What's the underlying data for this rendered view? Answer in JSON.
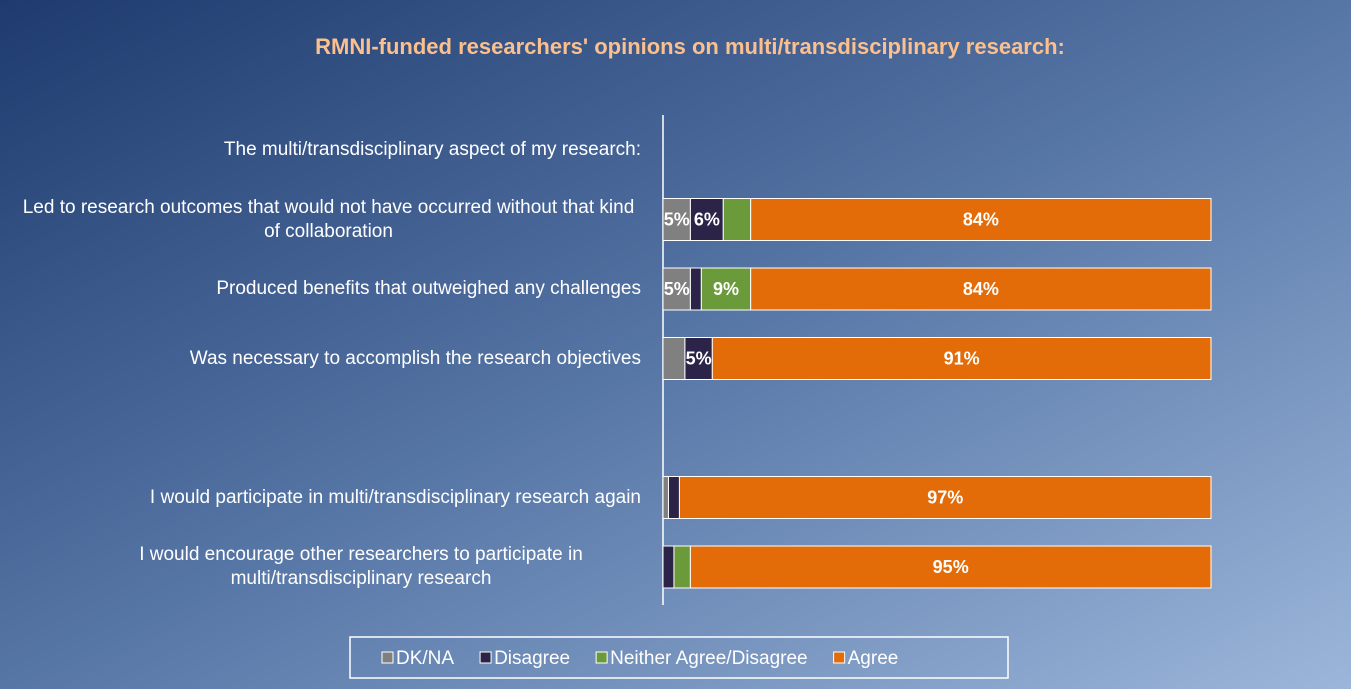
{
  "chart_data": {
    "type": "stacked-barh",
    "title": "RMNI-funded researchers' opinions  on multi/transdisciplinary research:",
    "categories": [
      "The multi/transdisciplinary aspect of my research:",
      "Led to research outcomes that would not have occurred without that kind of collaboration",
      "Produced benefits that outweighed any challenges",
      "Was necessary to accomplish the research objectives",
      null,
      "I would participate in multi/transdisciplinary research again",
      "I would encourage other researchers to participate in multi/transdisciplinary research"
    ],
    "xlim": [
      0,
      100
    ],
    "legend": "bottom",
    "series": [
      {
        "name": "DK/NA",
        "color": "#808080",
        "values": [
          null,
          5,
          5,
          4,
          null,
          1,
          0
        ],
        "value_labels": [
          null,
          "5%",
          "5%",
          null,
          null,
          null,
          null
        ]
      },
      {
        "name": "Disagree",
        "color": "#2b2448",
        "values": [
          null,
          6,
          2,
          5,
          null,
          2,
          2
        ],
        "value_labels": [
          null,
          "6%",
          null,
          "5%",
          null,
          null,
          null
        ]
      },
      {
        "name": "Neither Agree/Disagree",
        "color": "#6b9a3a",
        "values": [
          null,
          5,
          9,
          0,
          null,
          0,
          3
        ],
        "value_labels": [
          null,
          null,
          "9%",
          null,
          null,
          null,
          null
        ]
      },
      {
        "name": "Agree",
        "color": "#e36c09",
        "values": [
          null,
          84,
          84,
          91,
          null,
          97,
          95
        ],
        "value_labels": [
          null,
          "84%",
          "84%",
          "91%",
          null,
          "97%",
          "95%"
        ]
      }
    ]
  }
}
